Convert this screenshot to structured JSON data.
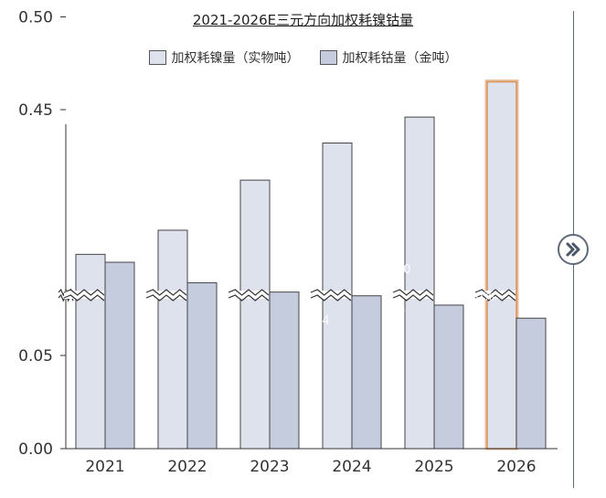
{
  "chart_data": {
    "type": "bar",
    "title": "2021-2026E三元方向加权耗镍钴量",
    "categories": [
      "2021",
      "2022",
      "2023",
      "2024",
      "2025",
      "2026"
    ],
    "series": [
      {
        "name": "加权耗镍量（实物吨）",
        "values": [
          0.372,
          0.385,
          0.412,
          0.432,
          0.446,
          0.465
        ]
      },
      {
        "name": "加权耗钴量（金吨）",
        "values": [
          0.1,
          0.089,
          0.084,
          0.082,
          0.077,
          0.07
        ]
      }
    ],
    "y_ticks": [
      "0.50",
      "0.45",
      "0.05",
      "0.00"
    ],
    "axis_break": true,
    "highlight_category": "2026",
    "faint_labels": [
      "30",
      "84",
      "86",
      "90%",
      "90%"
    ],
    "colors": {
      "nickel": "#dde2ec",
      "cobalt": "#c4ccde",
      "stroke": "#444444",
      "highlight": "#d9925a"
    }
  },
  "navigation": {
    "next_icon": "chevron-double-right-icon"
  }
}
